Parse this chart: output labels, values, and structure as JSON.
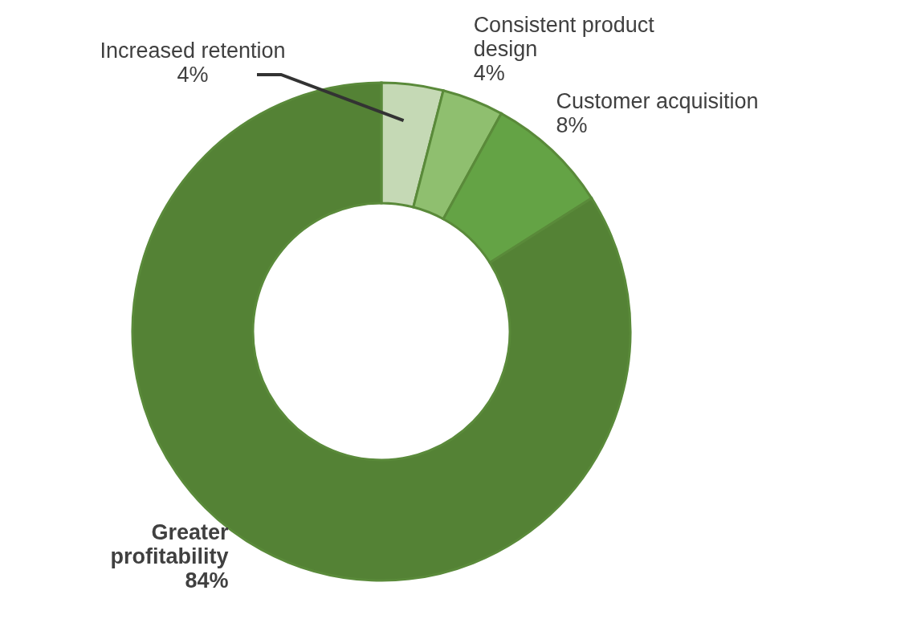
{
  "chart_data": {
    "type": "donut",
    "categories": [
      "Increased retention",
      "Consistent product design",
      "Customer acquisition",
      "Greater profitability"
    ],
    "values": [
      4,
      4,
      8,
      84
    ],
    "colors": [
      "#c5d9b5",
      "#8fbf6f",
      "#64a345",
      "#548235"
    ],
    "value_labels": [
      "4%",
      "4%",
      "8%",
      "84%"
    ],
    "legend": false
  }
}
